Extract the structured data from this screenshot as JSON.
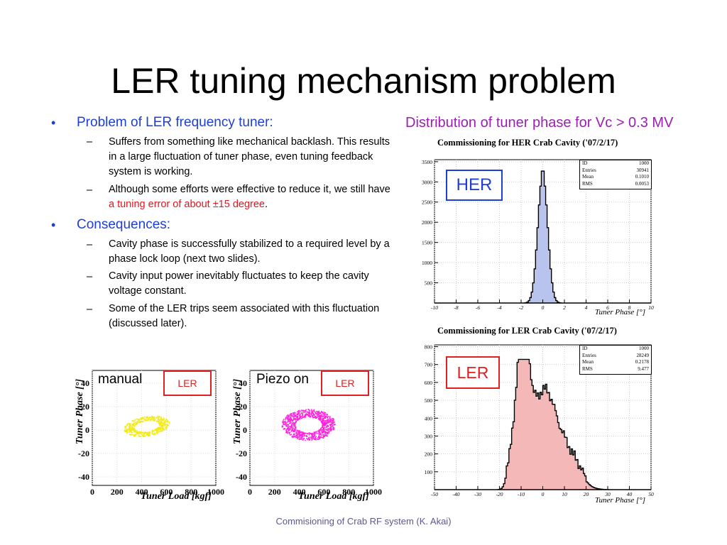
{
  "slide": {
    "title": "LER tuning mechanism problem",
    "bullets": [
      {
        "text": "Problem of LER frequency tuner:",
        "subs": [
          "Suffers from something like mechanical backlash. This results in a large fluctuation of tuner phase, even tuning feedback system is working.",
          "Although some efforts were effective to reduce it, we still have"
        ],
        "sub2_highlight": "a tuning error of about ±15 degree",
        "sub2_end": "."
      },
      {
        "text": "Consequences:",
        "subs": [
          "Cavity phase is successfully stabilized to a required level by a phase lock loop (next two slides).",
          "Cavity input power inevitably fluctuates to keep the cavity voltage constant.",
          "Some of the LER trips seem associated with this fluctuation (discussed later)."
        ]
      }
    ],
    "footer": "Commisioning of Crab RF system (K. Akai)",
    "dist_caption": "Distribution of tuner phase for Vc > 0.3 MV",
    "colors": {
      "title": "#000000",
      "bullet": "#1f3fd4",
      "highlight": "#e8141f",
      "caption": "#9b1fb3",
      "label_border": "#e02020",
      "her_border": "#1f3fd4"
    }
  },
  "her_plot": {
    "title": "Commissioning for HER Crab Cavity ('07/2/17)",
    "badge": "HER",
    "stats": [
      [
        "ID",
        "1000"
      ],
      [
        "Entries",
        "30941"
      ],
      [
        "Mean",
        "0.1010"
      ],
      [
        "RMS",
        "0.0053"
      ]
    ],
    "xlabel": "Tuner Phase [°]",
    "xticks": [
      "-10",
      "-8",
      "-6",
      "-4",
      "-2",
      "0",
      "2",
      "4",
      "6",
      "8",
      "10"
    ],
    "yticks": [
      "500",
      "1000",
      "1500",
      "2000",
      "2500",
      "3000",
      "3500"
    ],
    "hist_color": "#7a8ee0"
  },
  "ler_plot": {
    "title": "Commissioning for LER Crab Cavity ('07/2/17)",
    "badge": "LER",
    "stats": [
      [
        "ID",
        "1000"
      ],
      [
        "Entries",
        "28249"
      ],
      [
        "Mean",
        "0.2178"
      ],
      [
        "RMS",
        "9.477"
      ]
    ],
    "xlabel": "Tuner Phase [°]",
    "xticks": [
      "-50",
      "-40",
      "-30",
      "-20",
      "-10",
      "0",
      "10",
      "20",
      "30",
      "40",
      "50"
    ],
    "yticks": [
      "100",
      "200",
      "300",
      "400",
      "500",
      "600",
      "700",
      "800"
    ],
    "hist_color": "#e88a8a"
  },
  "scatter_manual": {
    "label": "manual",
    "badge": "LER",
    "xlabel": "Tuner Load [kgf]",
    "ylabel": "Tuner Phase [°]",
    "xticks": [
      "0",
      "200",
      "400",
      "600",
      "800",
      "1000"
    ],
    "yticks": [
      "40",
      "20",
      "0",
      "-20",
      "-40"
    ],
    "color": "#f2ea1a"
  },
  "scatter_piezo": {
    "label": "Piezo on",
    "badge": "LER",
    "xlabel": "Tuner Load [kgf]",
    "ylabel": "Tuner Phase [°]",
    "xticks": [
      "0",
      "200",
      "400",
      "600",
      "800",
      "1000"
    ],
    "yticks": [
      "40",
      "20",
      "0",
      "-20",
      "-40"
    ],
    "color": "#ff22dd"
  }
}
